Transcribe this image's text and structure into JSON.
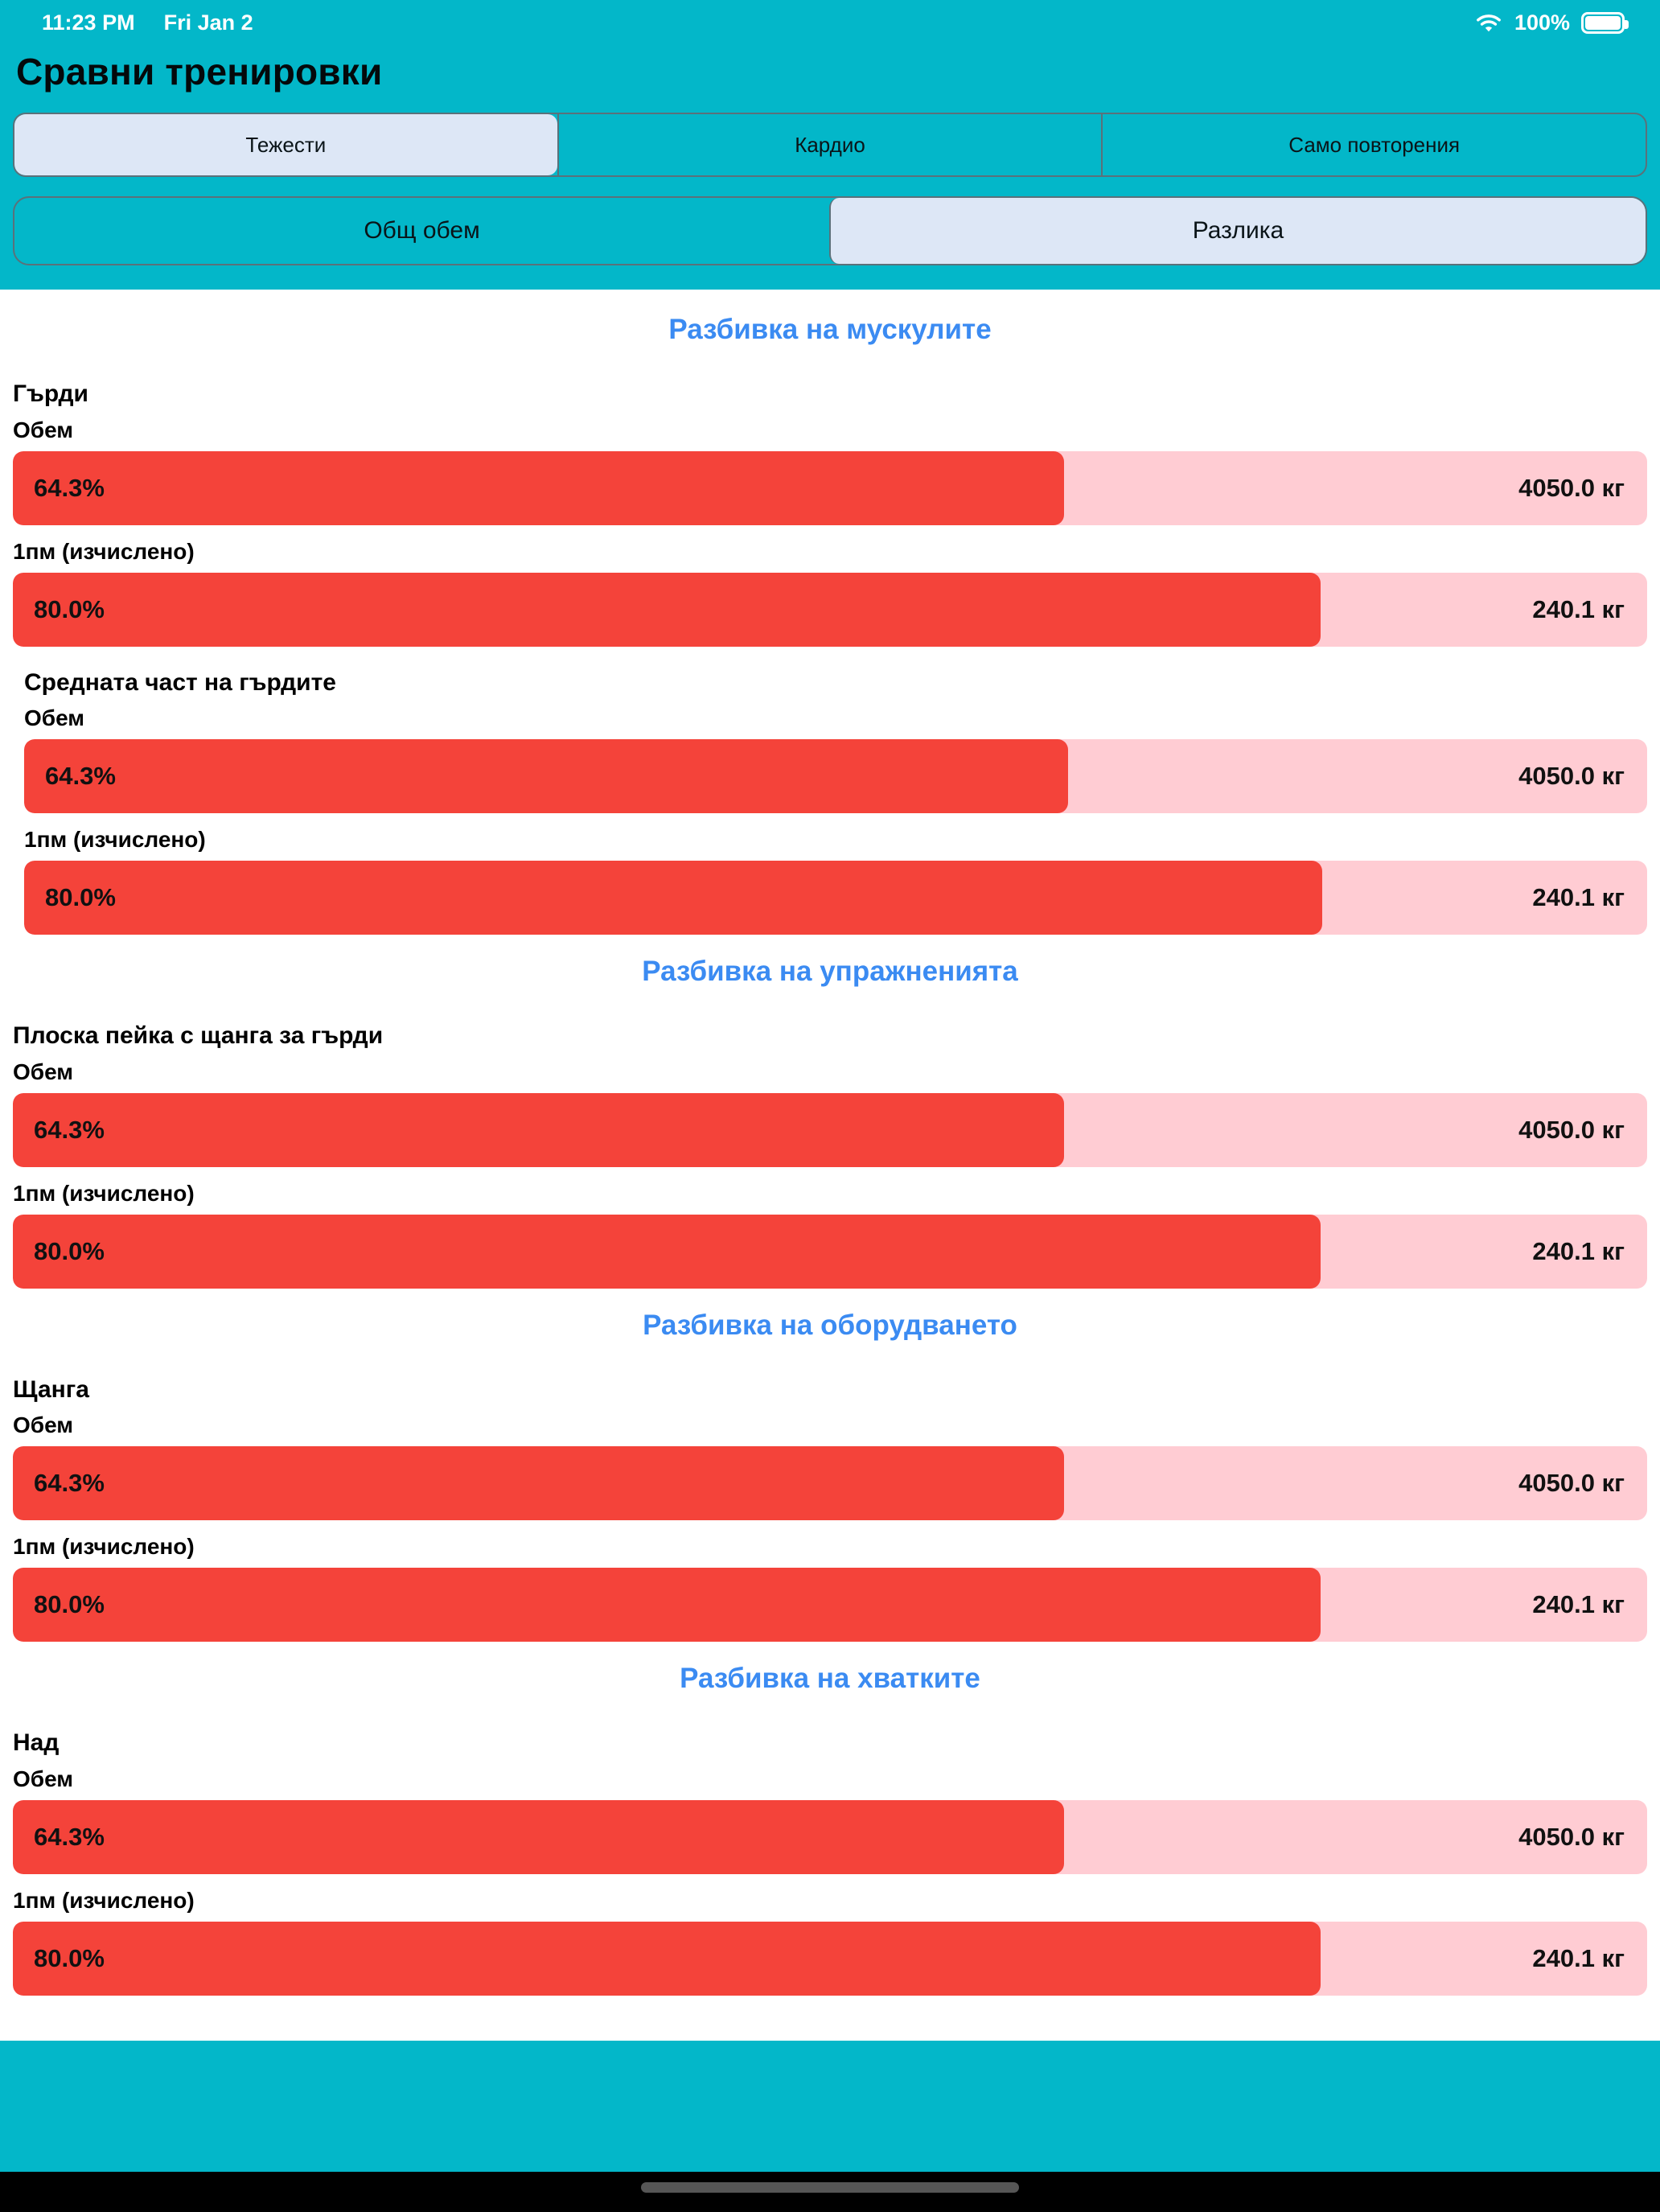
{
  "status_bar": {
    "time": "11:23 PM",
    "date": "Fri Jan 2",
    "battery_percent": "100%"
  },
  "header": {
    "title": "Сравни тренировки"
  },
  "type_segmented": {
    "options": [
      {
        "label": "Тежести",
        "selected": true
      },
      {
        "label": "Кардио",
        "selected": false
      },
      {
        "label": "Само повторения",
        "selected": false
      }
    ]
  },
  "mode_segmented": {
    "options": [
      {
        "label": "Общ обем",
        "selected": false
      },
      {
        "label": "Разлика",
        "selected": true
      }
    ]
  },
  "colors": {
    "background_teal": "#03b7c9",
    "bar_fill_red": "#f4433a",
    "bar_track_pink": "#ffccd3",
    "heading_blue": "#3b8bf2",
    "segment_selected": "#dde7f6"
  },
  "sections": [
    {
      "heading": "Разбивка на мускулите",
      "groups": [
        {
          "name": "Гърди",
          "indent": false,
          "metrics": [
            {
              "label": "Обем",
              "percent": "64.3%",
              "percent_value": 64.3,
              "value": "4050.0 кг"
            },
            {
              "label": "1пм (изчислено)",
              "percent": "80.0%",
              "percent_value": 80.0,
              "value": "240.1 кг"
            }
          ]
        },
        {
          "name": "Средната част на гърдите",
          "indent": true,
          "metrics": [
            {
              "label": "Обем",
              "percent": "64.3%",
              "percent_value": 64.3,
              "value": "4050.0 кг"
            },
            {
              "label": "1пм (изчислено)",
              "percent": "80.0%",
              "percent_value": 80.0,
              "value": "240.1 кг"
            }
          ]
        }
      ]
    },
    {
      "heading": "Разбивка на упражненията",
      "groups": [
        {
          "name": "Плоска пейка с щанга за гърди",
          "indent": false,
          "metrics": [
            {
              "label": "Обем",
              "percent": "64.3%",
              "percent_value": 64.3,
              "value": "4050.0 кг"
            },
            {
              "label": "1пм (изчислено)",
              "percent": "80.0%",
              "percent_value": 80.0,
              "value": "240.1 кг"
            }
          ]
        }
      ]
    },
    {
      "heading": "Разбивка на оборудването",
      "groups": [
        {
          "name": "Щанга",
          "indent": false,
          "metrics": [
            {
              "label": "Обем",
              "percent": "64.3%",
              "percent_value": 64.3,
              "value": "4050.0 кг"
            },
            {
              "label": "1пм (изчислено)",
              "percent": "80.0%",
              "percent_value": 80.0,
              "value": "240.1 кг"
            }
          ]
        }
      ]
    },
    {
      "heading": "Разбивка на хватките",
      "groups": [
        {
          "name": "Над",
          "indent": false,
          "metrics": [
            {
              "label": "Обем",
              "percent": "64.3%",
              "percent_value": 64.3,
              "value": "4050.0 кг"
            },
            {
              "label": "1пм (изчислено)",
              "percent": "80.0%",
              "percent_value": 80.0,
              "value": "240.1 кг"
            }
          ]
        }
      ]
    }
  ]
}
